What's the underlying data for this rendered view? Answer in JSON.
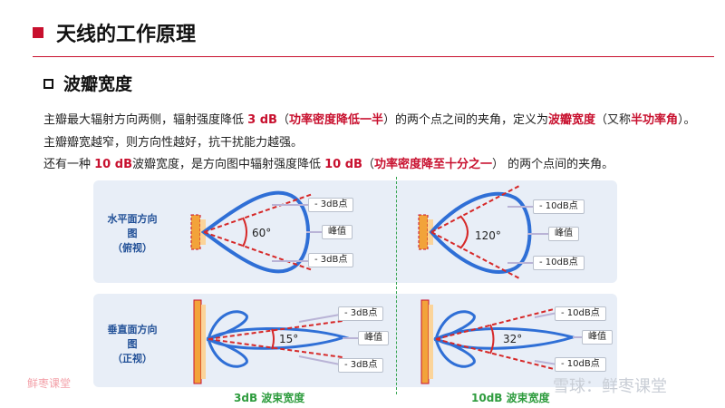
{
  "header": {
    "title": "天线的工作原理"
  },
  "section": {
    "title": "波瓣宽度"
  },
  "paragraphs": {
    "p1": {
      "a": "主瓣最大辐射方向两侧，辐射强度降低 ",
      "b": "3 dB",
      "c": "（",
      "d": "功率密度降低一半",
      "e": "）的两个点之间的夹角，定义为",
      "f": "波瓣宽度",
      "g": "（又称",
      "h": "半功率角",
      "i": "）。"
    },
    "p2": "主瓣瓣宽越窄，则方向性越好，抗干扰能力越强。",
    "p3": {
      "a": "还有一种 ",
      "b": "10 dB",
      "c": "波瓣宽度，是方向图中辐射强度降低 ",
      "d": "10 dB",
      "e": "（",
      "f": "功率密度降至十分之一",
      "g": "） 的两个点间的夹角。"
    }
  },
  "panels": {
    "horizontal": {
      "line1": "水平面方向",
      "line2": "图",
      "line3": "（俯视）"
    },
    "vertical": {
      "line1": "垂直面方向",
      "line2": "图",
      "line3": "（正视）"
    }
  },
  "diagrams": {
    "h3db": {
      "angle": "60°",
      "top_tag": "- 3dB点",
      "mid_tag": "峰值",
      "bottom_tag": "- 3dB点"
    },
    "h10db": {
      "angle": "120°",
      "top_tag": "- 10dB点",
      "mid_tag": "峰值",
      "bottom_tag": "- 10dB点"
    },
    "v3db": {
      "angle": "15°",
      "top_tag": "- 3dB点",
      "mid_tag": "峰值",
      "bottom_tag": "- 3dB点"
    },
    "v10db": {
      "angle": "32°",
      "top_tag": "- 10dB点",
      "mid_tag": "峰值",
      "bottom_tag": "- 10dB点"
    }
  },
  "captions": {
    "left": "3dB 波束宽度",
    "right": "10dB 波束宽度"
  },
  "watermarks": {
    "left": "鲜枣课堂",
    "right": "雪球：鲜枣课堂"
  },
  "colors": {
    "accent_red": "#c8102e",
    "lobe_blue": "#2f6fd6",
    "antenna_orange": "#f2a33a",
    "caption_green": "#2e9c3e",
    "panel_bg": "#e8eef7"
  }
}
